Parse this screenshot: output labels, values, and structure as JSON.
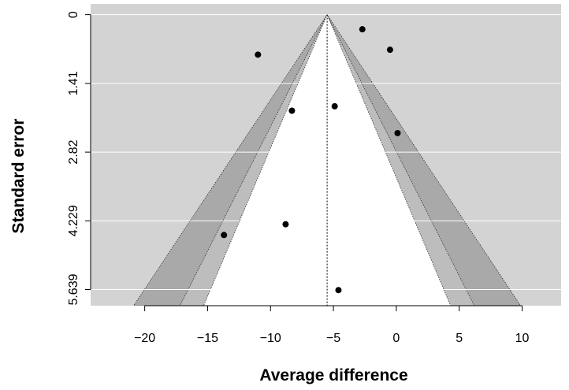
{
  "chart_data": {
    "type": "scatter",
    "subtype": "contour-enhanced funnel plot",
    "xlabel": "Average difference",
    "ylabel": "Standard error",
    "x_ticks": [
      -20,
      -15,
      -10,
      -5,
      0,
      5,
      10
    ],
    "y_ticks": [
      "0",
      "1.41",
      "2.82",
      "4.229",
      "5.639"
    ],
    "y_tick_values": [
      0,
      1.41,
      2.82,
      4.229,
      5.639
    ],
    "xlim": [
      -24.3,
      13.1
    ],
    "ylim": [
      5.97,
      -0.22
    ],
    "y_reversed": true,
    "grid": "horizontal white lines at y ticks",
    "reference_line": {
      "x": -5.5,
      "style": "dotted"
    },
    "contour_z": [
      1.645,
      1.96,
      2.576
    ],
    "colors": {
      "outer": "#d3d3d3",
      "band_90_95": "#a9a9a9",
      "band_95_99": "#bdbdbd",
      "inner": "#ffffff",
      "points": "#000000"
    },
    "points": [
      {
        "x": -2.7,
        "y": 0.3
      },
      {
        "x": -0.5,
        "y": 0.72
      },
      {
        "x": -11.0,
        "y": 0.82
      },
      {
        "x": -4.9,
        "y": 1.88
      },
      {
        "x": -8.3,
        "y": 1.97
      },
      {
        "x": 0.1,
        "y": 2.43
      },
      {
        "x": -8.8,
        "y": 4.3
      },
      {
        "x": -13.7,
        "y": 4.52
      },
      {
        "x": -4.6,
        "y": 5.65
      }
    ]
  }
}
